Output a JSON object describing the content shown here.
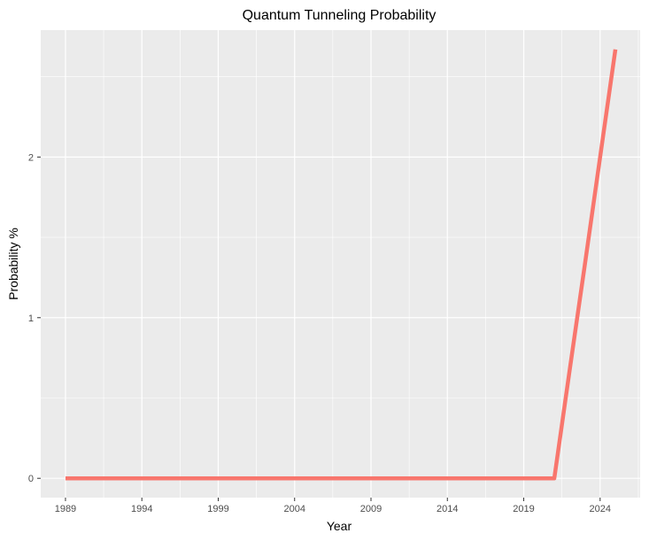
{
  "chart_data": {
    "type": "line",
    "title": "Quantum Tunneling Probability",
    "xlabel": "Year",
    "ylabel": "Probability %",
    "x_ticks": [
      1989,
      1994,
      1999,
      2004,
      2009,
      2014,
      2019,
      2024
    ],
    "y_ticks": [
      0,
      1,
      2
    ],
    "xlim": [
      1989,
      2025
    ],
    "ylim": [
      0,
      2.67
    ],
    "grid": true,
    "legend": "none",
    "colors": {
      "line": "#F8766D",
      "panel": "#EBEBEB",
      "grid": "#FFFFFF"
    },
    "series": [
      {
        "x": [
          1989,
          1990,
          1991,
          1992,
          1993,
          1994,
          1995,
          1996,
          1997,
          1998,
          1999,
          2000,
          2001,
          2002,
          2003,
          2004,
          2005,
          2006,
          2007,
          2008,
          2009,
          2010,
          2011,
          2012,
          2013,
          2014,
          2015,
          2016,
          2017,
          2018,
          2019,
          2020,
          2021,
          2022,
          2023,
          2024,
          2025
        ],
        "y": [
          0,
          0,
          0,
          0,
          0,
          0,
          0,
          0,
          0,
          0,
          0,
          0,
          0,
          0,
          0,
          0,
          0,
          0,
          0,
          0,
          0,
          0,
          0,
          0,
          0,
          0,
          0,
          0,
          0,
          0,
          0,
          0,
          0,
          0.67,
          1.33,
          2.0,
          2.67
        ]
      }
    ]
  }
}
